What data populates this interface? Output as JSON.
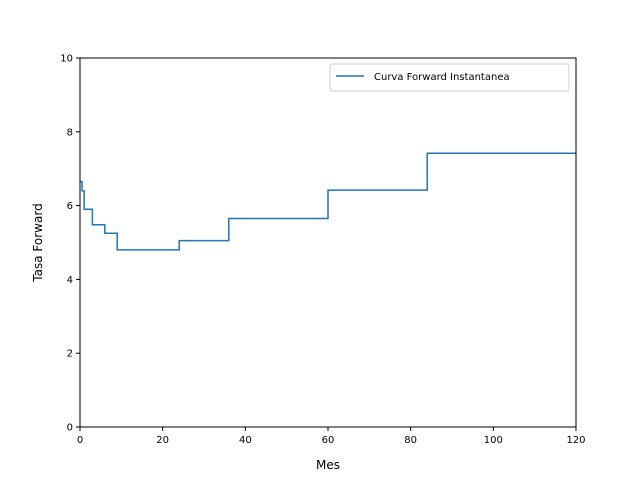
{
  "chart_data": {
    "type": "line",
    "step": "post",
    "title": "",
    "xlabel": "Mes",
    "ylabel": "Tasa Forward",
    "xlim": [
      0,
      120
    ],
    "ylim": [
      0,
      10
    ],
    "xticks": [
      0,
      20,
      40,
      60,
      80,
      100,
      120
    ],
    "yticks": [
      0,
      2,
      4,
      6,
      8,
      10
    ],
    "grid": false,
    "legend_position": "top-right",
    "series": [
      {
        "name": "Curva Forward Instantanea",
        "color": "#1f77b4",
        "x": [
          0,
          0.5,
          1,
          3,
          6,
          9,
          12,
          24,
          36,
          60,
          84,
          120
        ],
        "y": [
          6.65,
          6.4,
          5.9,
          5.48,
          5.25,
          4.8,
          4.8,
          5.05,
          5.65,
          6.42,
          7.42,
          7.42
        ]
      }
    ]
  }
}
